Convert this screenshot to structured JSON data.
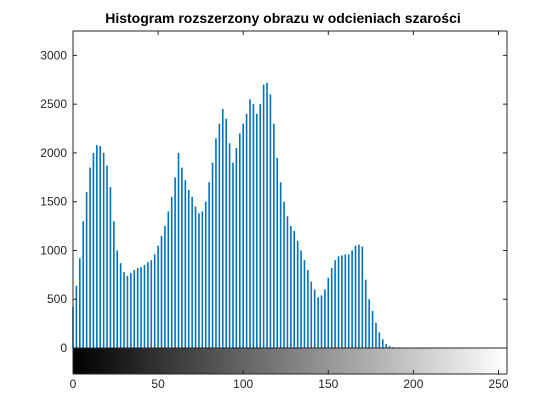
{
  "chart_data": {
    "type": "bar",
    "title": "Histogram rozszerzony obrazu w odcieniach szarości",
    "xlabel": "",
    "ylabel": "",
    "xlim": [
      0,
      255
    ],
    "ylim": [
      0,
      3250
    ],
    "x_ticks": [
      0,
      50,
      100,
      150,
      200,
      250
    ],
    "y_ticks": [
      0,
      500,
      1000,
      1500,
      2000,
      2500,
      3000
    ],
    "grid": false,
    "legend": "none",
    "bar_color": "#0072bd",
    "colorbar": {
      "type": "grayscale",
      "from_color": "#000000",
      "to_color": "#ffffff",
      "range": [
        0,
        255
      ]
    },
    "bin_step": 2,
    "x": [
      0,
      2,
      4,
      6,
      8,
      10,
      12,
      14,
      16,
      18,
      20,
      22,
      24,
      26,
      28,
      30,
      32,
      34,
      36,
      38,
      40,
      42,
      44,
      46,
      48,
      50,
      52,
      54,
      56,
      58,
      60,
      62,
      64,
      66,
      68,
      70,
      72,
      74,
      76,
      78,
      80,
      82,
      84,
      86,
      88,
      90,
      92,
      94,
      96,
      98,
      100,
      102,
      104,
      106,
      108,
      110,
      112,
      114,
      116,
      118,
      120,
      122,
      124,
      126,
      128,
      130,
      132,
      134,
      136,
      138,
      140,
      142,
      144,
      146,
      148,
      150,
      152,
      154,
      156,
      158,
      160,
      162,
      164,
      166,
      168,
      170,
      172,
      174,
      176,
      178,
      180,
      182,
      184,
      186,
      188,
      190,
      192,
      194,
      196,
      198,
      200
    ],
    "values": [
      420,
      640,
      920,
      1300,
      1600,
      1850,
      2000,
      2080,
      2070,
      2000,
      1870,
      1650,
      1300,
      1000,
      870,
      780,
      740,
      770,
      800,
      820,
      830,
      850,
      880,
      900,
      960,
      1050,
      1150,
      1250,
      1400,
      1550,
      1750,
      2000,
      1850,
      1720,
      1620,
      1550,
      1450,
      1380,
      1400,
      1500,
      1700,
      1900,
      2150,
      2300,
      2450,
      2350,
      2100,
      1900,
      2050,
      2200,
      2300,
      2400,
      2550,
      2500,
      2400,
      2500,
      2700,
      2720,
      2600,
      2300,
      1950,
      1700,
      1500,
      1350,
      1250,
      1200,
      1100,
      1000,
      900,
      800,
      680,
      600,
      520,
      540,
      600,
      720,
      820,
      900,
      940,
      950,
      960,
      960,
      1000,
      1050,
      1060,
      1040,
      700,
      500,
      380,
      260,
      160,
      90,
      40,
      20,
      8,
      4,
      0,
      0,
      0,
      0,
      0
    ]
  }
}
